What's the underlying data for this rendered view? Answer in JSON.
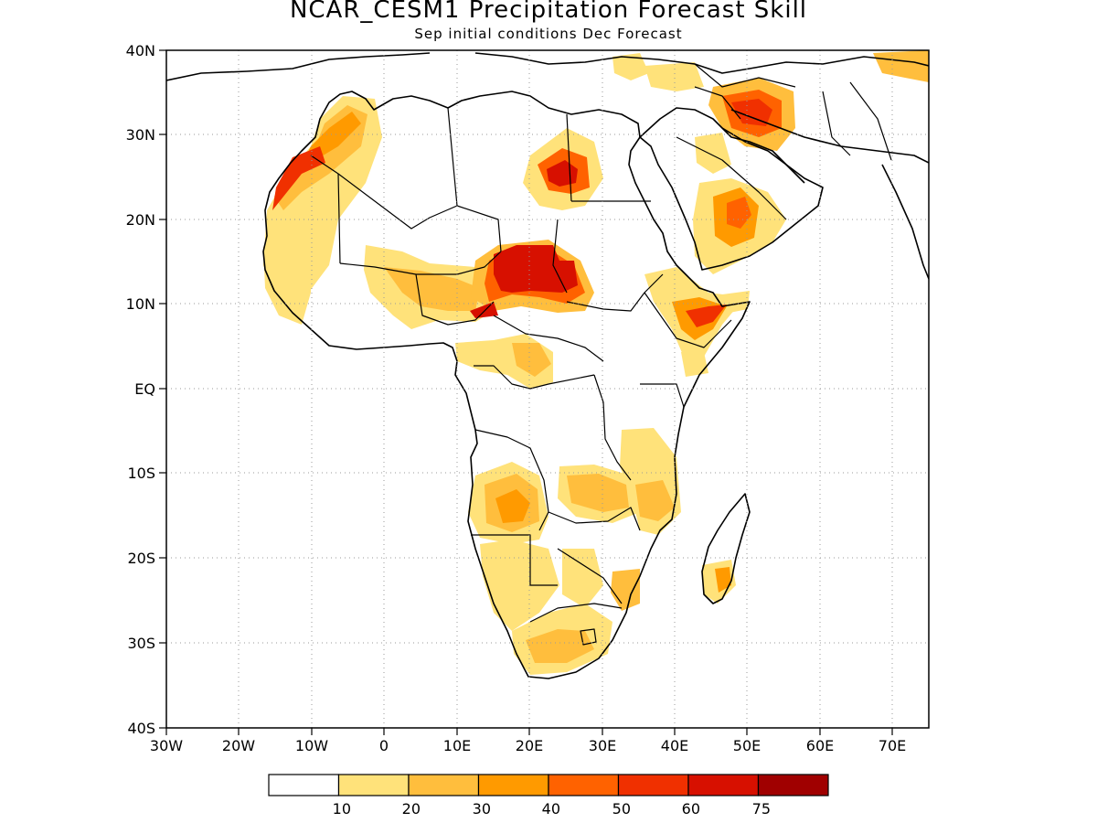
{
  "title": "NCAR_CESM1 Precipitation Forecast Skill",
  "subtitle": "Sep initial conditions  Dec Forecast",
  "map": {
    "lon_range": [
      -30,
      75
    ],
    "lat_range": [
      -40,
      40
    ],
    "lat_labels": [
      "40N",
      "30N",
      "20N",
      "10N",
      "EQ",
      "10S",
      "20S",
      "30S",
      "40S"
    ],
    "lon_labels": [
      "30W",
      "20W",
      "10W",
      "0",
      "10E",
      "20E",
      "30E",
      "40E",
      "50E",
      "60E",
      "70E"
    ],
    "grid": true,
    "grid_style": "dotted"
  },
  "colorbar": {
    "labels": [
      "10",
      "20",
      "30",
      "40",
      "50",
      "60",
      "75"
    ],
    "colors": [
      "#ffffff",
      "#ffe27a",
      "#ffbe3d",
      "#ff9a00",
      "#ff6200",
      "#f03000",
      "#d71000",
      "#a00000"
    ]
  }
}
